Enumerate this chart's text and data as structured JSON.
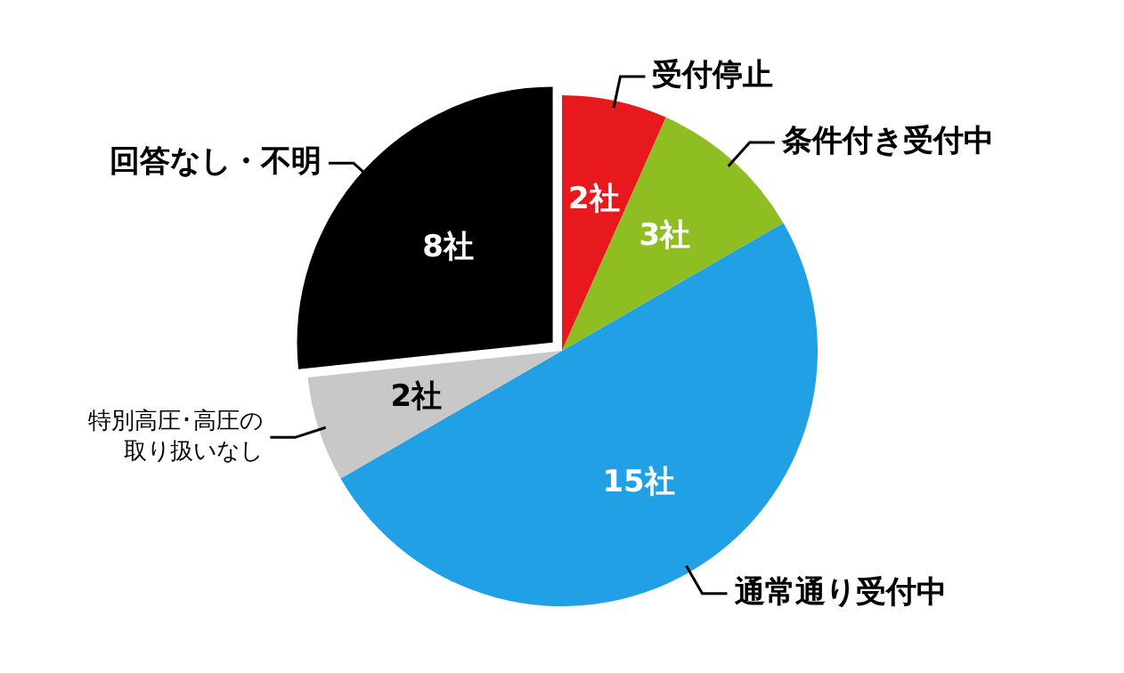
{
  "chart_data": {
    "type": "pie",
    "categories": [
      "受付停止",
      "条件付き受付中",
      "通常通り受付中",
      "特別高圧･高圧の取り扱いなし",
      "回答なし・不明"
    ],
    "values": [
      2,
      3,
      15,
      2,
      8
    ],
    "colors": [
      "#e8191c",
      "#8fbe23",
      "#22a0e6",
      "#c8c8c8",
      "#000000"
    ],
    "value_labels": [
      "2社",
      "3社",
      "15社",
      "2社",
      "8社"
    ],
    "legend": false
  }
}
